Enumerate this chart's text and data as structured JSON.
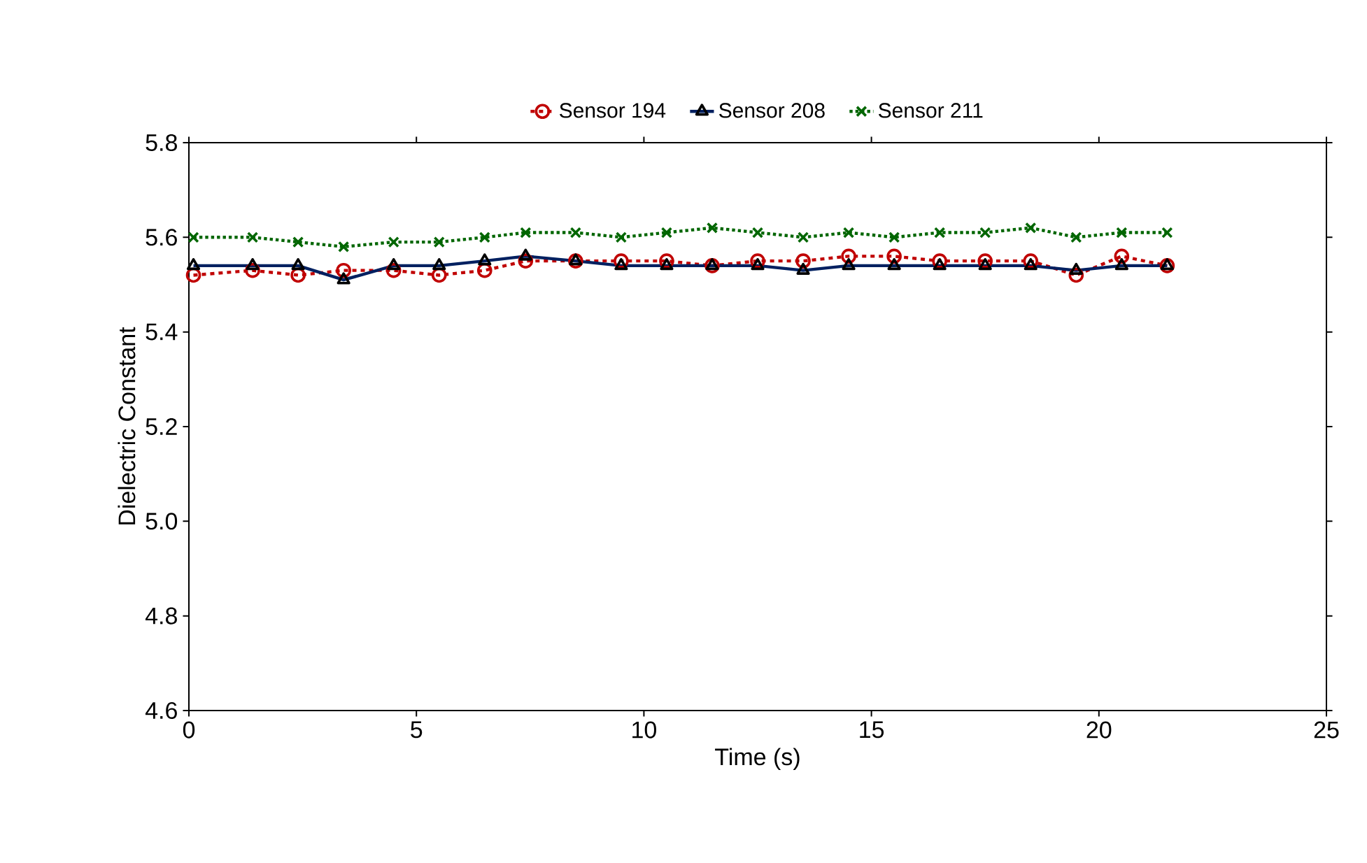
{
  "chart_data": {
    "type": "line",
    "xlabel": "Time (s)",
    "ylabel": "Dielectric Constant",
    "x": [
      0.1,
      1.4,
      2.4,
      3.4,
      4.5,
      5.5,
      6.5,
      7.4,
      8.5,
      9.5,
      10.5,
      11.5,
      12.5,
      13.5,
      14.5,
      15.5,
      16.5,
      17.5,
      18.5,
      19.5,
      20.5,
      21.5
    ],
    "series": [
      {
        "name": "Sensor 194",
        "color": "#c00000",
        "marker": "circle",
        "line_style": "dashed",
        "values": [
          5.52,
          5.53,
          5.52,
          5.53,
          5.53,
          5.52,
          5.53,
          5.55,
          5.55,
          5.55,
          5.55,
          5.54,
          5.55,
          5.55,
          5.56,
          5.56,
          5.55,
          5.55,
          5.55,
          5.52,
          5.56,
          5.54
        ]
      },
      {
        "name": "Sensor 208",
        "color": "#002060",
        "marker": "triangle",
        "line_style": "solid",
        "values": [
          5.54,
          5.54,
          5.54,
          5.51,
          5.54,
          5.54,
          5.55,
          5.56,
          5.55,
          5.54,
          5.54,
          5.54,
          5.54,
          5.53,
          5.54,
          5.54,
          5.54,
          5.54,
          5.54,
          5.53,
          5.54,
          5.54
        ]
      },
      {
        "name": "Sensor 211",
        "color": "#006600",
        "marker": "cross",
        "line_style": "dotted",
        "values": [
          5.6,
          5.6,
          5.59,
          5.58,
          5.59,
          5.59,
          5.6,
          5.61,
          5.61,
          5.6,
          5.61,
          5.62,
          5.61,
          5.6,
          5.61,
          5.6,
          5.61,
          5.61,
          5.62,
          5.6,
          5.61,
          5.61
        ]
      }
    ],
    "xlim": [
      0,
      25
    ],
    "xticks": [
      0,
      5,
      10,
      15,
      20,
      25
    ],
    "ylim": [
      4.6,
      5.8
    ],
    "yticks": [
      {
        "value": 4.6,
        "label": "4.6"
      },
      {
        "value": 4.8,
        "label": "4.8"
      },
      {
        "value": 5.0,
        "label": "5.0"
      },
      {
        "value": 5.2,
        "label": "5.2"
      },
      {
        "value": 5.4,
        "label": "5.4"
      },
      {
        "value": 5.6,
        "label": "5.6"
      },
      {
        "value": 5.8,
        "label": "5.8"
      }
    ],
    "grid": false,
    "legend": "top"
  }
}
